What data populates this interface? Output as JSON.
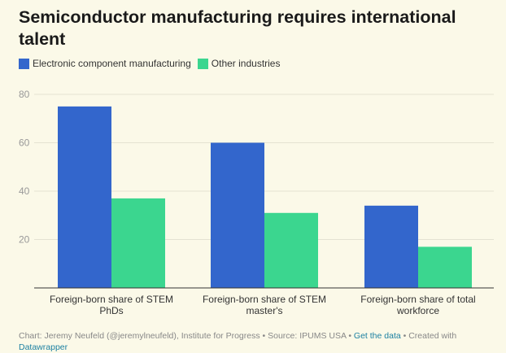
{
  "title": "Semiconductor manufacturing requires international talent",
  "colors": {
    "series1": "#3366cc",
    "series2": "#3bd68f",
    "background": "#fbf9e8",
    "link": "#1d81a2"
  },
  "legend": {
    "items": [
      {
        "label": "Electronic component manufacturing"
      },
      {
        "label": "Other industries"
      }
    ]
  },
  "footer": {
    "text_before": "Chart: Jeremy Neufeld (@jeremylneufeld), Institute for Progress • Source: IPUMS USA • ",
    "get_data": "Get the data",
    "text_mid": " • Created with ",
    "datawrapper": "Datawrapper"
  },
  "chart_data": {
    "type": "bar",
    "categories": [
      "Foreign-born share of STEM PhDs",
      "Foreign-born share of STEM master's",
      "Foreign-born share of total workforce"
    ],
    "category_lines": [
      [
        "Foreign-born share of STEM",
        "PhDs"
      ],
      [
        "Foreign-born share of STEM",
        "master's"
      ],
      [
        "Foreign-born share of total",
        "workforce"
      ]
    ],
    "series": [
      {
        "name": "Electronic component manufacturing",
        "values": [
          75,
          60,
          34
        ]
      },
      {
        "name": "Other industries",
        "values": [
          37,
          31,
          17
        ]
      }
    ],
    "ylim": [
      0,
      80
    ],
    "yticks": [
      20,
      40,
      60,
      80
    ],
    "grid": true,
    "legend_position": "top-left",
    "title": "Semiconductor manufacturing requires international talent",
    "xlabel": "",
    "ylabel": ""
  }
}
